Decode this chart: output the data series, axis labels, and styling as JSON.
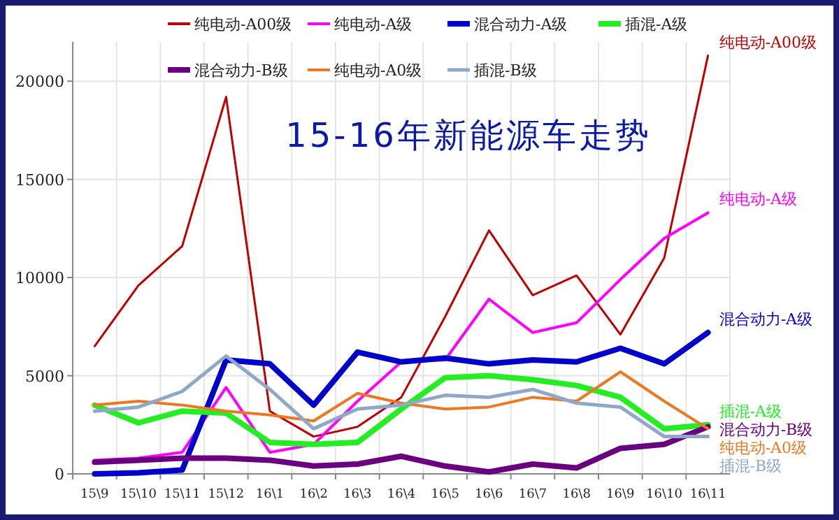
{
  "chart_data": {
    "type": "line",
    "title": "15-16年新能源车走势",
    "categories": [
      "15\\9",
      "15\\10",
      "15\\11",
      "15\\12",
      "16\\1",
      "16\\2",
      "16\\3",
      "16\\4",
      "16\\5",
      "16\\6",
      "16\\7",
      "16\\8",
      "16\\9",
      "16\\10",
      "16\\11"
    ],
    "series": [
      {
        "name": "纯电动-A00级",
        "color": "#c00000",
        "values": [
          6500,
          9600,
          11600,
          19200,
          3200,
          1900,
          2400,
          3900,
          8000,
          12400,
          9100,
          10100,
          7100,
          11000,
          21300
        ]
      },
      {
        "name": "纯电动-A级",
        "color": "#ff00ff",
        "values": [
          700,
          800,
          1100,
          4400,
          1100,
          1500,
          3700,
          5700,
          5800,
          8900,
          7200,
          7700,
          9900,
          12000,
          13300
        ]
      },
      {
        "name": "混合动力-A级",
        "color": "#0000cc",
        "values": [
          0,
          50,
          200,
          5800,
          5600,
          3500,
          6200,
          5700,
          5900,
          5600,
          5800,
          5700,
          6400,
          5600,
          7200
        ]
      },
      {
        "name": "插混-A级",
        "color": "#22ee22",
        "values": [
          3500,
          2600,
          3200,
          3100,
          1600,
          1500,
          1600,
          3300,
          4900,
          5000,
          4800,
          4500,
          3900,
          2300,
          2500
        ]
      },
      {
        "name": "混合动力-B级",
        "color": "#6a0080",
        "values": [
          600,
          700,
          800,
          800,
          700,
          400,
          500,
          900,
          400,
          100,
          500,
          300,
          1300,
          1500,
          2400
        ]
      },
      {
        "name": "纯电动-A0级",
        "color": "#ee7722",
        "values": [
          3500,
          3700,
          3500,
          3200,
          3000,
          2700,
          4100,
          3600,
          3300,
          3400,
          3900,
          3700,
          5200,
          3700,
          2300
        ]
      },
      {
        "name": "插混-B级",
        "color": "#8fa8c8",
        "values": [
          3200,
          3400,
          4200,
          6000,
          4300,
          2300,
          3300,
          3500,
          4000,
          3900,
          4300,
          3600,
          3400,
          1900,
          1900
        ]
      }
    ],
    "ylim": [
      0,
      22000
    ],
    "yticks": [
      0,
      5000,
      10000,
      15000,
      20000
    ],
    "grid": true,
    "legend": "top",
    "marker": "none",
    "line_style": "solid"
  }
}
